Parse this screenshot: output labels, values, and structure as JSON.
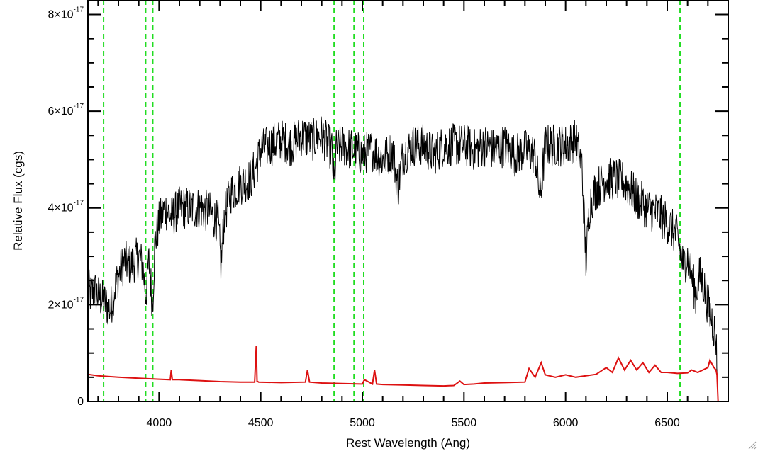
{
  "chart_data": {
    "type": "line",
    "title": "",
    "xlabel": "Rest Wavelength (Ang)",
    "ylabel": "Relative Flux (cgs)",
    "xlim": [
      3650,
      6800
    ],
    "ylim": [
      0,
      8.3e-17
    ],
    "x_ticks": [
      4000,
      4500,
      5000,
      5500,
      6000,
      6500
    ],
    "x_tick_labels": [
      "4000",
      "4500",
      "5000",
      "5500",
      "6000",
      "6500"
    ],
    "y_ticks": [
      0,
      2e-17,
      4e-17,
      6e-17,
      8e-17
    ],
    "y_tick_labels": [
      {
        "mantissa": "0",
        "base": "",
        "exponent": ""
      },
      {
        "mantissa": "2",
        "base": "×10",
        "exponent": "-17"
      },
      {
        "mantissa": "4",
        "base": "×10",
        "exponent": "-17"
      },
      {
        "mantissa": "6",
        "base": "×10",
        "exponent": "-17"
      },
      {
        "mantissa": "8",
        "base": "×10",
        "exponent": "-17"
      }
    ],
    "grid": false,
    "legend": "none",
    "reference_lines": {
      "color": "#22dd22",
      "style": "dashed",
      "x": [
        3727,
        3934,
        3969,
        4861,
        4959,
        5007,
        6563
      ]
    },
    "series": [
      {
        "color": "#000000",
        "style": "noisy-spectrum",
        "x": [
          3650,
          3660,
          3680,
          3700,
          3720,
          3740,
          3760,
          3780,
          3800,
          3830,
          3860,
          3880,
          3900,
          3920,
          3935,
          3950,
          3968,
          3980,
          4000,
          4030,
          4060,
          4100,
          4150,
          4200,
          4250,
          4290,
          4305,
          4320,
          4350,
          4400,
          4450,
          4480,
          4500,
          4550,
          4600,
          4650,
          4700,
          4750,
          4800,
          4850,
          4861,
          4870,
          4900,
          4950,
          5000,
          5050,
          5100,
          5150,
          5175,
          5200,
          5250,
          5300,
          5350,
          5400,
          5450,
          5500,
          5550,
          5600,
          5650,
          5700,
          5750,
          5800,
          5850,
          5875,
          5900,
          5950,
          6000,
          6050,
          6080,
          6100,
          6120,
          6150,
          6200,
          6250,
          6300,
          6350,
          6400,
          6450,
          6500,
          6550,
          6580,
          6600,
          6620,
          6640,
          6660,
          6680,
          6700,
          6720,
          6740,
          6750
        ],
        "values": [
          2.4e-17,
          2.2e-17,
          2.3e-17,
          2.2e-17,
          2.1e-17,
          2e-17,
          1.9e-17,
          2.3e-17,
          2.6e-17,
          2.9e-17,
          2.8e-17,
          2.9e-17,
          3e-17,
          2.8e-17,
          2.2e-17,
          2.9e-17,
          2e-17,
          3.3e-17,
          3.7e-17,
          4e-17,
          3.8e-17,
          4e-17,
          4e-17,
          4e-17,
          3.9e-17,
          3.7e-17,
          2.8e-17,
          3.8e-17,
          4.3e-17,
          4.5e-17,
          4.6e-17,
          4.9e-17,
          5.2e-17,
          5.3e-17,
          5.4e-17,
          5.3e-17,
          5.5e-17,
          5.4e-17,
          5.5e-17,
          5.2e-17,
          4.4e-17,
          5.2e-17,
          5.3e-17,
          5.2e-17,
          5.1e-17,
          5.2e-17,
          5e-17,
          5.2e-17,
          4.4e-17,
          5.1e-17,
          5.3e-17,
          5.3e-17,
          5.1e-17,
          5.3e-17,
          5.3e-17,
          5.3e-17,
          5.2e-17,
          5.3e-17,
          5.2e-17,
          5.3e-17,
          5.1e-17,
          5.2e-17,
          5.1e-17,
          4.2e-17,
          5.3e-17,
          5.3e-17,
          5.3e-17,
          5.4e-17,
          4.9e-17,
          2.9e-17,
          4.1e-17,
          4.4e-17,
          4.6e-17,
          4.6e-17,
          4.5e-17,
          4.2e-17,
          4e-17,
          3.9e-17,
          3.7e-17,
          3.4e-17,
          2.8e-17,
          3e-17,
          2.6e-17,
          2.2e-17,
          2.6e-17,
          2.4e-17,
          2e-17,
          1.7e-17,
          1.3e-17,
          0.0
        ]
      },
      {
        "color": "#dd1111",
        "style": "line",
        "x": [
          3650,
          3700,
          3800,
          3900,
          4000,
          4055,
          4060,
          4065,
          4100,
          4200,
          4300,
          4400,
          4470,
          4478,
          4482,
          4490,
          4600,
          4720,
          4730,
          4740,
          4800,
          4900,
          5000,
          5010,
          5050,
          5060,
          5070,
          5100,
          5200,
          5300,
          5400,
          5450,
          5480,
          5500,
          5550,
          5600,
          5700,
          5800,
          5820,
          5850,
          5880,
          5900,
          5950,
          6000,
          6050,
          6100,
          6150,
          6200,
          6230,
          6260,
          6290,
          6320,
          6350,
          6380,
          6410,
          6440,
          6470,
          6500,
          6550,
          6600,
          6620,
          6650,
          6700,
          6710,
          6730,
          6740,
          6745,
          6750
        ],
        "values": [
          5.6e-18,
          5.3e-18,
          5e-18,
          4.8e-18,
          4.6e-18,
          4.5e-18,
          6.5e-18,
          4.5e-18,
          4.5e-18,
          4.3e-18,
          4.1e-18,
          4e-18,
          4e-18,
          1.15e-17,
          4.2e-18,
          4e-18,
          3.9e-18,
          4e-18,
          6.5e-18,
          4e-18,
          3.8e-18,
          3.7e-18,
          3.6e-18,
          4.5e-18,
          3.6e-18,
          6.5e-18,
          3.6e-18,
          3.5e-18,
          3.4e-18,
          3.3e-18,
          3.2e-18,
          3.3e-18,
          4.2e-18,
          3.5e-18,
          3.6e-18,
          3.8e-18,
          3.9e-18,
          4e-18,
          6.8e-18,
          5e-18,
          8e-18,
          5.5e-18,
          5e-18,
          5.5e-18,
          5e-18,
          5.3e-18,
          5.6e-18,
          7e-18,
          6e-18,
          9e-18,
          6.5e-18,
          8.5e-18,
          6.5e-18,
          8e-18,
          6e-18,
          7.5e-18,
          6e-18,
          6e-18,
          5.8e-18,
          5.9e-18,
          6.5e-18,
          6e-18,
          7e-18,
          8.5e-18,
          7e-18,
          6.5e-18,
          5.5e-18,
          0.0
        ]
      }
    ]
  }
}
